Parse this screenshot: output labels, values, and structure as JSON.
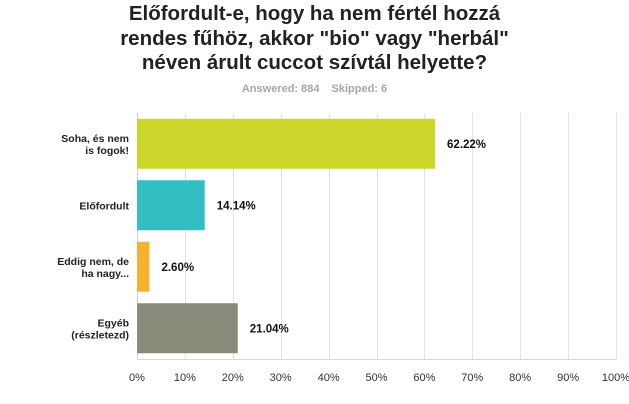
{
  "title_lines": [
    "Előfordult-e, hogy ha nem fértél hozzá",
    "rendes fűhöz, akkor \"bio\" vagy \"herbál\"",
    "néven árult cuccot szívtál helyette?"
  ],
  "stats": {
    "answered": "Answered: 884",
    "skipped": "Skipped: 6"
  },
  "chart_data": {
    "type": "bar",
    "orientation": "horizontal",
    "categories": [
      [
        "Soha, és nem",
        "is fogok!"
      ],
      [
        "Előfordult"
      ],
      [
        "Eddig nem, de",
        "ha nagy..."
      ],
      [
        "Egyéb",
        "(részletezd)"
      ]
    ],
    "values": [
      62.22,
      14.14,
      2.6,
      21.04
    ],
    "value_labels": [
      "62.22%",
      "14.14%",
      "2.60%",
      "21.04%"
    ],
    "colors": [
      "#cdd62a",
      "#33bfc1",
      "#f6b22f",
      "#8a8a7a"
    ],
    "xlim": [
      0,
      100
    ],
    "xticks": [
      "0%",
      "10%",
      "20%",
      "30%",
      "40%",
      "50%",
      "60%",
      "70%",
      "80%",
      "90%",
      "100%"
    ],
    "grid": true
  }
}
